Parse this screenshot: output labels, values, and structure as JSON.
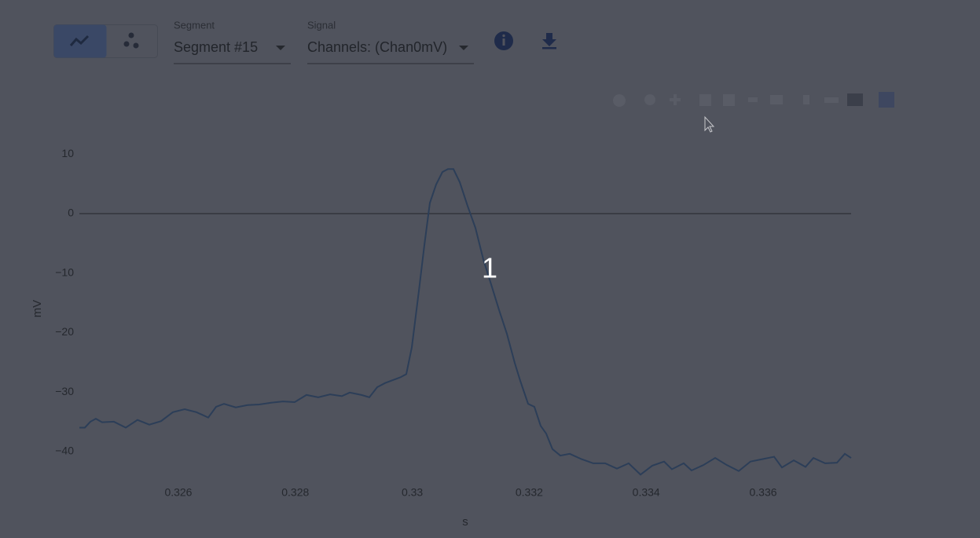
{
  "toolbar": {
    "segment_label": "Segment",
    "segment_value": "Segment #15",
    "signal_label": "Signal",
    "signal_value": "Channels: (Chan0mV)"
  },
  "chart_data": {
    "type": "line",
    "x_label": "s",
    "y_label": "mV",
    "annotations": [
      "1"
    ],
    "x": [
      0.324307,
      0.324401,
      0.324495,
      0.324589,
      0.324696,
      0.324898,
      0.3251,
      0.325301,
      0.325503,
      0.325704,
      0.325906,
      0.326108,
      0.326309,
      0.326511,
      0.326645,
      0.32678,
      0.326981,
      0.327183,
      0.327384,
      0.327586,
      0.327788,
      0.327989,
      0.328191,
      0.328392,
      0.328594,
      0.328796,
      0.32893,
      0.329132,
      0.329266,
      0.3294,
      0.329535,
      0.329669,
      0.329804,
      0.329898,
      0.329992,
      0.330113,
      0.330207,
      0.330301,
      0.330408,
      0.330516,
      0.33061,
      0.330704,
      0.330812,
      0.330946,
      0.33108,
      0.331215,
      0.331349,
      0.331484,
      0.331618,
      0.331752,
      0.331846,
      0.331981,
      0.332088,
      0.332196,
      0.33229,
      0.332397,
      0.332532,
      0.332693,
      0.332895,
      0.333096,
      0.333298,
      0.3335,
      0.333701,
      0.333903,
      0.334104,
      0.334306,
      0.33444,
      0.334642,
      0.334776,
      0.334978,
      0.33518,
      0.335381,
      0.335583,
      0.335784,
      0.335986,
      0.336188,
      0.336322,
      0.336524,
      0.336725,
      0.33686,
      0.337061,
      0.337263,
      0.337397,
      0.337505
    ],
    "series": [
      {
        "color": "#2c3e58",
        "values": [
          -36,
          -36,
          -35,
          -34.5,
          -35.1,
          -35,
          -36,
          -34.7,
          -35.5,
          -34.9,
          -33.4,
          -32.9,
          -33.4,
          -34.3,
          -32.5,
          -32,
          -32.6,
          -32.2,
          -32.1,
          -31.8,
          -31.6,
          -31.7,
          -30.5,
          -30.9,
          -30.4,
          -30.7,
          -30.1,
          -30.5,
          -30.9,
          -29.2,
          -28.5,
          -28,
          -27.5,
          -27,
          -22.5,
          -13,
          -5.3,
          1.8,
          4.9,
          7,
          7.5,
          7.5,
          5.3,
          1.3,
          -2.4,
          -7.7,
          -11.9,
          -16.2,
          -20.2,
          -25.1,
          -28.1,
          -32,
          -32.5,
          -35.7,
          -37,
          -39.6,
          -40.7,
          -40.4,
          -41.3,
          -42,
          -42,
          -42.9,
          -42,
          -43.9,
          -42.4,
          -41.7,
          -43,
          -42,
          -43.2,
          -42.3,
          -41.1,
          -42.3,
          -43.3,
          -41.7,
          -41.3,
          -40.9,
          -42.7,
          -41.5,
          -42.6,
          -41.1,
          -42,
          -41.9,
          -40.4,
          -41.1
        ]
      }
    ],
    "xlim": [
      0.324307,
      0.337505
    ],
    "xticks": [
      0.326,
      0.328,
      0.33,
      0.332,
      0.334,
      0.336
    ],
    "ylim": [
      -45,
      12
    ],
    "yticks": [
      {
        "value": -40,
        "label": "−40"
      },
      {
        "value": -30,
        "label": "−30"
      },
      {
        "value": -20,
        "label": "−20"
      },
      {
        "value": -10,
        "label": "−10"
      },
      0,
      10
    ],
    "zeroline": true,
    "grid": false
  }
}
